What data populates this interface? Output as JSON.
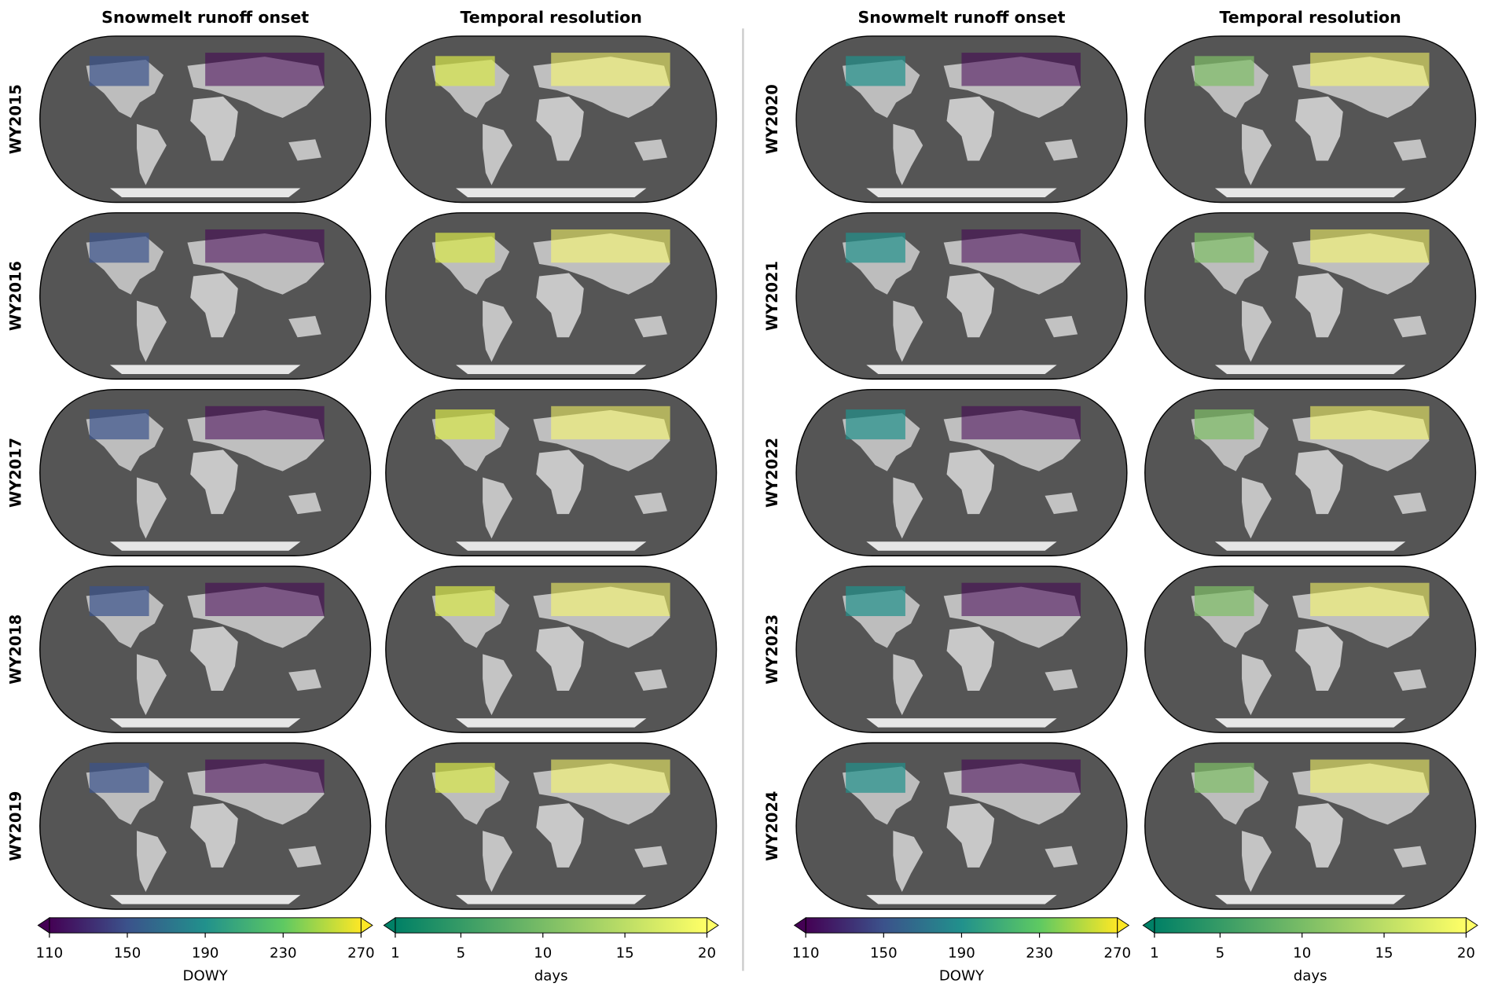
{
  "groups": [
    {
      "columns": [
        "Snowmelt runoff onset",
        "Temporal resolution"
      ],
      "rows": [
        "WY2015",
        "WY2016",
        "WY2017",
        "WY2018",
        "WY2019"
      ],
      "colorbars": [
        {
          "label": "DOWY",
          "range": [
            110,
            270
          ],
          "ticks": [
            110,
            150,
            190,
            230,
            270
          ]
        },
        {
          "label": "days",
          "range": [
            1,
            20
          ],
          "ticks": [
            1,
            5,
            10,
            15,
            20
          ]
        }
      ]
    },
    {
      "columns": [
        "Snowmelt runoff onset",
        "Temporal resolution"
      ],
      "rows": [
        "WY2020",
        "WY2021",
        "WY2022",
        "WY2023",
        "WY2024"
      ],
      "colorbars": [
        {
          "label": "DOWY",
          "range": [
            110,
            270
          ],
          "ticks": [
            110,
            150,
            190,
            230,
            270
          ]
        },
        {
          "label": "days",
          "range": [
            1,
            20
          ],
          "ticks": [
            1,
            5,
            10,
            15,
            20
          ]
        }
      ]
    }
  ]
}
